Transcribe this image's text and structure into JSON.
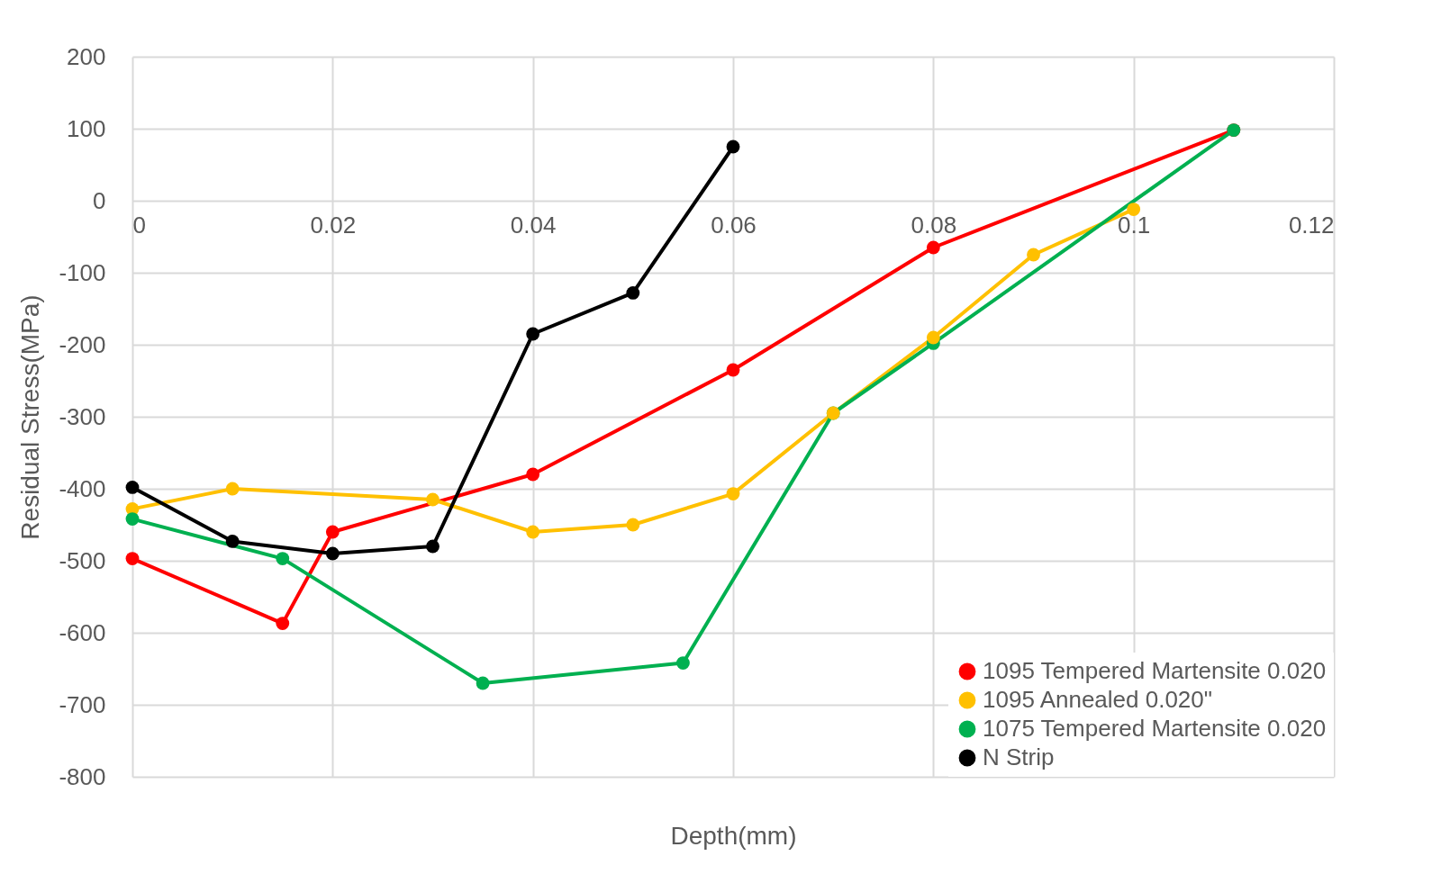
{
  "chart_data": {
    "type": "line",
    "xlabel": "Depth(mm)",
    "ylabel": "Residual Stress(MPa)",
    "xlim": [
      0,
      0.12
    ],
    "xticks": [
      0,
      0.02,
      0.04,
      0.06,
      0.08,
      0.1,
      0.12
    ],
    "ylim": [
      -800,
      200
    ],
    "yticks": [
      -800,
      -700,
      -600,
      -500,
      -400,
      -300,
      -200,
      -100,
      0,
      100,
      200
    ],
    "grid": true,
    "legend": "bottom right",
    "marker": "circle",
    "line_style": "solid",
    "series": [
      {
        "name": "1095 Tempered Martensite 0.020",
        "color": "#ff0000",
        "x": [
          0,
          0.015,
          0.02,
          0.04,
          0.06,
          0.08,
          0.11
        ],
        "values": [
          -497,
          -587,
          -460,
          -380,
          -235,
          -65,
          98
        ]
      },
      {
        "name": "1095 Annealed 0.020\"",
        "color": "#ffc000",
        "x": [
          0,
          0.01,
          0.03,
          0.04,
          0.05,
          0.06,
          0.07,
          0.08,
          0.09,
          0.1
        ],
        "values": [
          -428,
          -400,
          -415,
          -460,
          -450,
          -407,
          -295,
          -190,
          -75,
          -12
        ]
      },
      {
        "name": "1075 Tempered Martensite 0.020",
        "color": "#00b050",
        "x": [
          0,
          0.015,
          0.035,
          0.055,
          0.07,
          0.08,
          0.11
        ],
        "values": [
          -442,
          -497,
          -670,
          -642,
          -295,
          -198,
          98
        ]
      },
      {
        "name": "N Strip",
        "color": "#000000",
        "x": [
          0,
          0.01,
          0.02,
          0.03,
          0.04,
          0.05,
          0.06
        ],
        "values": [
          -398,
          -473,
          -490,
          -480,
          -185,
          -128,
          75
        ]
      }
    ]
  }
}
